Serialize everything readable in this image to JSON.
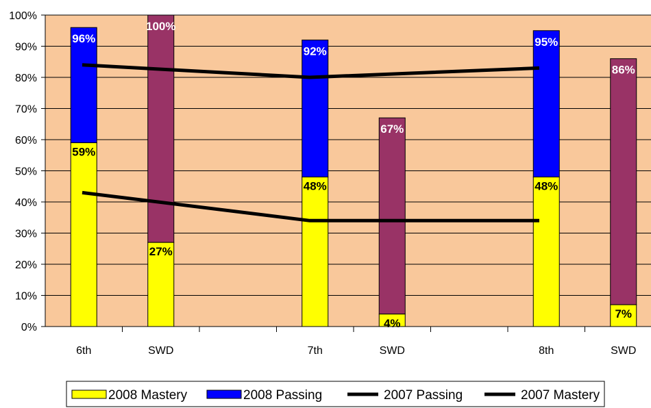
{
  "chart_data": {
    "type": "bar",
    "stacked": true,
    "categories": [
      "6th",
      "SWD",
      "",
      "7th",
      "SWD",
      "",
      "8th",
      "SWD"
    ],
    "ylim": [
      0,
      100
    ],
    "ytick_labels": [
      "0%",
      "10%",
      "20%",
      "30%",
      "40%",
      "50%",
      "60%",
      "70%",
      "80%",
      "90%",
      "100%"
    ],
    "grid": true,
    "legend_position": "bottom",
    "bars": [
      {
        "category": "6th",
        "type": "grade",
        "mastery": 59,
        "passing": 96,
        "mastery_label": "59%",
        "passing_label": "96%"
      },
      {
        "category": "SWD",
        "type": "swd",
        "mastery": 27,
        "passing": 100,
        "mastery_label": "27%",
        "passing_label": "100%"
      },
      {
        "category": "7th",
        "type": "grade",
        "mastery": 48,
        "passing": 92,
        "mastery_label": "48%",
        "passing_label": "92%"
      },
      {
        "category": "SWD",
        "type": "swd",
        "mastery": 4,
        "passing": 67,
        "mastery_label": "4%",
        "passing_label": "67%"
      },
      {
        "category": "8th",
        "type": "grade",
        "mastery": 48,
        "passing": 95,
        "mastery_label": "48%",
        "passing_label": "95%"
      },
      {
        "category": "SWD",
        "type": "swd",
        "mastery": 7,
        "passing": 86,
        "mastery_label": "7%",
        "passing_label": "86%"
      }
    ],
    "lines": [
      {
        "name": "2007 Passing",
        "points": [
          {
            "x": "6th",
            "y": 84
          },
          {
            "x": "7th",
            "y": 80
          },
          {
            "x": "8th",
            "y": 83
          }
        ]
      },
      {
        "name": "2007 Mastery",
        "points": [
          {
            "x": "6th",
            "y": 43
          },
          {
            "x": "7th",
            "y": 34
          },
          {
            "x": "8th",
            "y": 34
          }
        ]
      }
    ],
    "legend": [
      {
        "label": "2008 Mastery",
        "kind": "box",
        "color": "#ffff00"
      },
      {
        "label": "2008 Passing",
        "kind": "box",
        "color": "#0000ff"
      },
      {
        "label": "2007 Passing",
        "kind": "line",
        "color": "#000000"
      },
      {
        "label": "2007 Mastery",
        "kind": "line",
        "color": "#000000"
      }
    ],
    "colors": {
      "plot_background": "#f9c89b",
      "mastery": "#ffff00",
      "passing": "#0000ff",
      "swd_passing": "#993366",
      "line": "#000000"
    }
  }
}
